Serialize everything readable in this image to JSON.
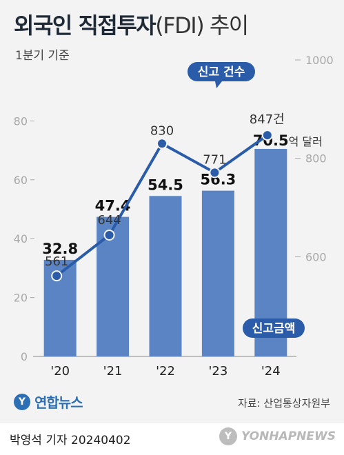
{
  "header": {
    "title_main": "외국인 직접투자",
    "title_paren": "(FDI) 추이",
    "subtitle": "1분기 기준"
  },
  "colors": {
    "bar": "#5a84c3",
    "line": "#2a5caa",
    "callout": "#2a5caa",
    "axis_text": "#a8a8a8"
  },
  "chart_data": {
    "type": "bar",
    "categories": [
      "'20",
      "'21",
      "'22",
      "'23",
      "'24"
    ],
    "series": [
      {
        "name": "신고금액",
        "kind": "bar",
        "axis": "left",
        "values": [
          32.8,
          47.4,
          54.5,
          56.3,
          70.5
        ],
        "labels": [
          "32.8",
          "47.4",
          "54.5",
          "56.3",
          "70.5"
        ]
      },
      {
        "name": "신고 건수",
        "kind": "line",
        "axis": "right",
        "values": [
          561,
          644,
          830,
          771,
          847
        ],
        "labels": [
          "561",
          "644",
          "830",
          "771",
          "847"
        ]
      }
    ],
    "left_axis": {
      "ylim": [
        0,
        100
      ],
      "ticks": [
        0,
        20,
        40,
        60,
        80
      ]
    },
    "right_axis": {
      "ylim": [
        400,
        1000
      ],
      "ticks": [
        600,
        800,
        1000
      ]
    },
    "bar_unit_suffix": "억 달러",
    "line_unit_suffix": "건",
    "legend_bar": "신고금액",
    "legend_line": "신고 건수",
    "grid": false
  },
  "footer": {
    "logo_mark": "Y",
    "logo": "연합뉴스",
    "source": "자료: 산업통상자원부",
    "reporter": "박영석 기자  20240402",
    "watermark_mark": "Y",
    "watermark": "YONHAPNEWS"
  }
}
